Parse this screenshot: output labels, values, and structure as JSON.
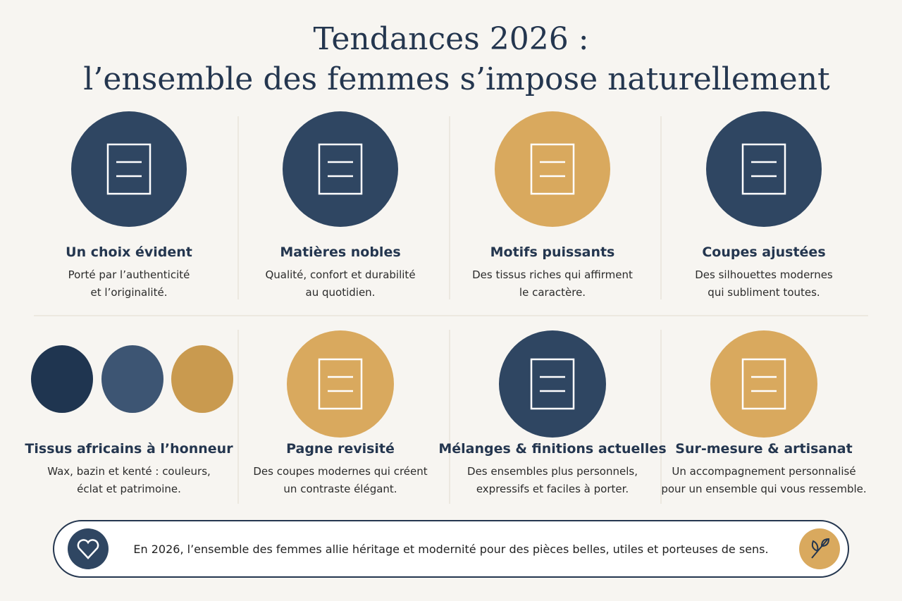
{
  "header": {
    "title": [
      "Tendances 2026 :",
      "l’ensemble des femmes s’impose naturellement"
    ]
  },
  "cards": [
    {
      "title": "Un choix évident",
      "text": [
        "Porté par l’authenticité",
        "et l’originalité."
      ]
    },
    {
      "title": "Matières nobles",
      "text": [
        "Qualité, confort et durabilité",
        "au quotidien."
      ]
    },
    {
      "title": "Motifs puissants",
      "text": [
        "Des tissus riches qui affirment",
        "le caractère."
      ]
    },
    {
      "title": "Coupes ajustées",
      "text": [
        "Des silhouettes modernes",
        "qui subliment toutes."
      ]
    },
    {
      "title": "Tissus africains à l’honneur",
      "text": [
        "Wax, bazin et kenté : couleurs,",
        "éclat et patrimoine."
      ]
    },
    {
      "title": "Pagne revisité",
      "text": [
        "Des coupes modernes qui créent",
        "un contraste élégant."
      ]
    },
    {
      "title": "Mélanges & finitions actuelles",
      "text": [
        "Des ensembles plus personnels,",
        "expressifs et faciles à porter."
      ]
    },
    {
      "title": "Sur-mesure & artisanat",
      "text": [
        "Un accompagnement personnalisé",
        "pour un ensemble qui vous ressemble."
      ]
    }
  ],
  "footer": {
    "text": "En 2026, l’ensemble des femmes allie héritage et modernité pour des pièces belles, utiles et porteuses de sens."
  }
}
